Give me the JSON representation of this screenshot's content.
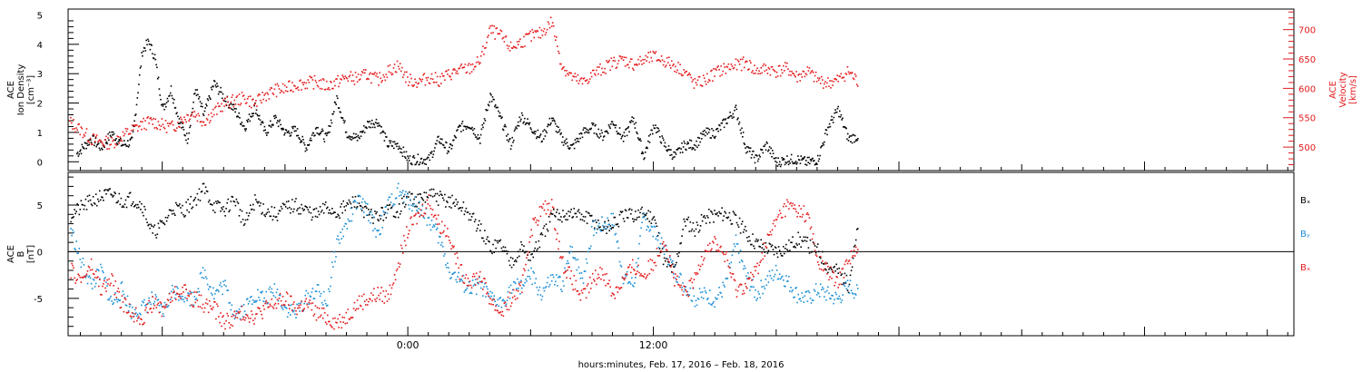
{
  "xaxis": {
    "caption": "hours:minutes, Feb. 17, 2016 – Feb. 18, 2016",
    "range_hours": [
      -16.6,
      43.3
    ],
    "tick_labels": [
      {
        "hour": 0,
        "label": "0:00"
      },
      {
        "hour": 12,
        "label": "12:00"
      }
    ]
  },
  "panel_top": {
    "left_axis_label": [
      "ACE",
      "Ion Density",
      "[cm⁻³]"
    ],
    "right_axis_label": [
      "ACE",
      "Velocity",
      "[km/s]"
    ],
    "left_color": "#000000",
    "right_color": "#e41a1c"
  },
  "panel_bottom": {
    "left_axis_label": [
      "ACE",
      "B",
      "[nT]"
    ],
    "legend": [
      {
        "label": "Bₓ",
        "color": "#000000"
      },
      {
        "label": "Bᵧ",
        "color": "#1b8fd6"
      },
      {
        "label": "Bₓ",
        "color": "#e41a1c"
      }
    ]
  },
  "chart_data": [
    {
      "type": "scatter",
      "title": "",
      "xlabel": "hours:minutes, Feb. 17, 2016 – Feb. 18, 2016",
      "ylabel": "ACE Ion Density [cm^-3]",
      "y2label": "ACE Velocity [km/s]",
      "ylim": [
        -0.3,
        5.2
      ],
      "y2lim": [
        460,
        735
      ],
      "yticks": [
        0,
        1,
        2,
        3,
        4,
        5
      ],
      "y2ticks": [
        500,
        550,
        600,
        650,
        700
      ],
      "grid": false,
      "series": [
        {
          "name": "Ion Density",
          "axis": "left",
          "color": "#000000",
          "x_hours": [
            -16.2,
            -15.5,
            -15.0,
            -14.5,
            -14.0,
            -13.5,
            -13.0,
            -12.7,
            -12.4,
            -12.0,
            -11.6,
            -11.2,
            -10.8,
            -10.4,
            -10.0,
            -9.5,
            -9.0,
            -8.5,
            -8.0,
            -7.5,
            -7.0,
            -6.5,
            -6.0,
            -5.5,
            -5.0,
            -4.5,
            -4.0,
            -3.5,
            -3.0,
            -2.5,
            -2.0,
            -1.5,
            -1.0,
            -0.5,
            0.0,
            0.5,
            1.0,
            1.5,
            2.0,
            2.5,
            3.0,
            3.5,
            4.0,
            4.5,
            5.0,
            5.5,
            6.0,
            6.5,
            7.0,
            7.5,
            8.0,
            8.5,
            9.0,
            9.5,
            10.0,
            10.5,
            11.0,
            11.5,
            12.0,
            12.5,
            13.0,
            13.5,
            14.0,
            14.5,
            15.0,
            15.5,
            16.0,
            16.5,
            17.0,
            17.5,
            18.0,
            18.5,
            19.0,
            19.5,
            20.0,
            20.5,
            21.0,
            21.5,
            22.0
          ],
          "values": [
            0.3,
            0.8,
            0.5,
            1.0,
            0.6,
            0.7,
            3.8,
            4.1,
            3.6,
            1.8,
            2.5,
            1.4,
            0.8,
            2.5,
            1.6,
            2.7,
            2.2,
            1.8,
            1.2,
            1.9,
            1.0,
            1.5,
            1.0,
            1.1,
            0.5,
            1.2,
            0.8,
            2.2,
            1.0,
            0.8,
            1.3,
            1.4,
            0.6,
            0.6,
            0.1,
            0.1,
            0.1,
            0.8,
            0.4,
            1.2,
            1.3,
            0.8,
            2.3,
            1.5,
            0.6,
            1.6,
            1.2,
            0.8,
            1.5,
            0.8,
            0.5,
            1.0,
            1.2,
            0.9,
            1.4,
            0.8,
            1.5,
            0.2,
            1.3,
            0.6,
            0.2,
            0.6,
            0.6,
            1.0,
            1.0,
            1.4,
            1.8,
            0.5,
            0.1,
            0.6,
            0.0,
            0.1,
            0.1,
            0.0,
            0.1,
            1.2,
            1.8,
            0.8,
            0.9
          ]
        },
        {
          "name": "Velocity",
          "axis": "right",
          "color": "#e41a1c",
          "x_hours": [
            -16.6,
            -16.0,
            -15.5,
            -15.0,
            -14.5,
            -14.0,
            -13.5,
            -13.0,
            -12.5,
            -12.0,
            -11.5,
            -11.0,
            -10.5,
            -10.0,
            -9.5,
            -9.0,
            -8.5,
            -8.0,
            -7.5,
            -7.0,
            -6.5,
            -6.0,
            -5.5,
            -5.0,
            -4.5,
            -4.0,
            -3.5,
            -3.0,
            -2.5,
            -2.0,
            -1.5,
            -1.0,
            -0.5,
            0.0,
            0.5,
            1.0,
            1.5,
            2.0,
            2.5,
            3.0,
            3.5,
            4.0,
            4.5,
            5.0,
            5.5,
            6.0,
            6.5,
            7.0,
            7.5,
            8.0,
            8.5,
            9.0,
            9.5,
            10.0,
            10.5,
            11.0,
            11.5,
            12.0,
            12.5,
            13.0,
            13.5,
            14.0,
            14.5,
            15.0,
            15.5,
            16.0,
            16.5,
            17.0,
            17.5,
            18.0,
            18.5,
            19.0,
            19.5,
            20.0,
            20.5,
            21.0,
            21.5,
            22.0
          ],
          "values": [
            545,
            530,
            515,
            510,
            508,
            520,
            530,
            540,
            545,
            538,
            535,
            550,
            560,
            545,
            560,
            575,
            580,
            585,
            575,
            590,
            598,
            600,
            608,
            610,
            612,
            605,
            612,
            620,
            618,
            625,
            615,
            630,
            640,
            615,
            612,
            620,
            615,
            625,
            632,
            635,
            648,
            700,
            690,
            670,
            680,
            690,
            695,
            715,
            640,
            620,
            610,
            625,
            635,
            645,
            650,
            642,
            648,
            655,
            648,
            640,
            630,
            608,
            615,
            628,
            635,
            640,
            645,
            630,
            635,
            630,
            635,
            620,
            630,
            615,
            610,
            615,
            630,
            610
          ]
        }
      ]
    },
    {
      "type": "scatter",
      "title": "",
      "xlabel": "hours:minutes, Feb. 17, 2016 – Feb. 18, 2016",
      "ylabel": "ACE B [nT]",
      "ylim": [
        -9,
        8.5
      ],
      "yticks": [
        -5,
        0,
        5
      ],
      "zero_line": true,
      "grid": false,
      "series": [
        {
          "name": "Bₓ",
          "color": "#000000",
          "x_hours": [
            -16.5,
            -15.5,
            -15.0,
            -14.5,
            -14.0,
            -13.5,
            -13.0,
            -12.5,
            -12.0,
            -11.5,
            -11.0,
            -10.5,
            -10.0,
            -9.5,
            -9.0,
            -8.5,
            -8.0,
            -7.5,
            -7.0,
            -6.5,
            -6.0,
            -5.5,
            -5.0,
            -4.5,
            -4.0,
            -3.5,
            -3.0,
            -2.5,
            -2.0,
            -1.5,
            -1.0,
            -0.5,
            0.0,
            0.5,
            1.0,
            1.5,
            2.0,
            2.5,
            3.0,
            3.5,
            4.0,
            4.5,
            5.0,
            5.5,
            6.0,
            6.5,
            7.0,
            7.5,
            8.0,
            8.5,
            9.0,
            9.5,
            10.0,
            10.5,
            11.0,
            11.5,
            12.0,
            12.5,
            13.0,
            13.5,
            14.0,
            14.5,
            15.0,
            15.5,
            16.0,
            16.5,
            17.0,
            17.5,
            18.0,
            18.5,
            19.0,
            19.5,
            20.0,
            20.5,
            21.0,
            21.5,
            22.0
          ],
          "values": [
            4.0,
            5.5,
            6.0,
            6.2,
            5.5,
            5.8,
            5.0,
            2.0,
            3.0,
            4.8,
            4.5,
            5.5,
            6.8,
            5.0,
            4.5,
            5.8,
            3.0,
            5.5,
            4.5,
            4.0,
            4.8,
            5.0,
            4.5,
            4.0,
            4.8,
            4.2,
            5.0,
            5.5,
            4.0,
            3.8,
            4.5,
            4.5,
            6.0,
            5.5,
            6.2,
            5.8,
            5.5,
            5.0,
            4.0,
            2.5,
            0.5,
            1.0,
            -1.0,
            0.5,
            -0.5,
            1.5,
            3.8,
            4.0,
            4.2,
            3.8,
            3.5,
            2.5,
            3.0,
            3.8,
            4.0,
            4.2,
            3.8,
            -1.0,
            -2.0,
            3.5,
            2.5,
            3.8,
            4.0,
            4.2,
            3.5,
            2.0,
            1.0,
            0.5,
            0.2,
            0.5,
            1.5,
            0.8,
            0.2,
            -1.5,
            -2.0,
            -3.5,
            3.0
          ]
        },
        {
          "name": "Bᵧ",
          "color": "#1b8fd6",
          "x_hours": [
            -16.5,
            -16.0,
            -15.5,
            -15.0,
            -14.5,
            -14.0,
            -13.5,
            -13.0,
            -12.5,
            -12.0,
            -11.5,
            -11.0,
            -10.5,
            -10.0,
            -9.5,
            -9.0,
            -8.5,
            -8.0,
            -7.5,
            -7.0,
            -6.5,
            -6.0,
            -5.5,
            -5.0,
            -4.5,
            -4.0,
            -3.5,
            -3.0,
            -2.5,
            -2.0,
            -1.5,
            -1.0,
            -0.5,
            0.0,
            0.5,
            1.0,
            1.5,
            2.0,
            2.5,
            3.0,
            3.5,
            4.0,
            4.5,
            5.0,
            5.5,
            6.0,
            6.5,
            7.0,
            7.5,
            8.0,
            8.5,
            9.0,
            9.5,
            10.0,
            10.5,
            11.0,
            11.5,
            12.0,
            12.5,
            13.0,
            13.5,
            14.0,
            14.5,
            15.0,
            15.5,
            16.0,
            16.5,
            17.0,
            17.5,
            18.0,
            18.5,
            19.0,
            19.5,
            20.0,
            20.5,
            21.0,
            21.5,
            22.0
          ],
          "values": [
            2.5,
            -1.0,
            -3.5,
            -2.0,
            -5.5,
            -4.0,
            -6.5,
            -6.0,
            -5.0,
            -6.5,
            -4.0,
            -4.5,
            -5.0,
            -2.0,
            -4.5,
            -3.5,
            -6.5,
            -6.0,
            -4.5,
            -5.0,
            -4.0,
            -6.0,
            -6.5,
            -5.0,
            -4.0,
            -5.5,
            1.0,
            3.0,
            5.5,
            4.5,
            2.0,
            5.0,
            6.5,
            5.5,
            5.0,
            3.5,
            1.5,
            -2.0,
            -3.0,
            -4.0,
            -3.5,
            -5.0,
            -5.5,
            -4.0,
            -3.5,
            -2.5,
            -4.5,
            -3.0,
            -3.5,
            0.5,
            -3.0,
            2.5,
            3.0,
            3.5,
            -2.5,
            -3.5,
            3.8,
            2.0,
            0.5,
            -2.0,
            -3.5,
            -5.0,
            -4.5,
            -5.0,
            -3.5,
            1.0,
            -2.5,
            -4.5,
            -3.0,
            -2.0,
            -3.0,
            -4.5,
            -5.0,
            -4.0,
            -4.5,
            -5.0,
            -3.5,
            -4.5
          ]
        },
        {
          "name": "Bₓ",
          "color": "#e41a1c",
          "x_hours": [
            -16.5,
            -16.0,
            -15.5,
            -15.0,
            -14.5,
            -14.0,
            -13.5,
            -13.0,
            -12.5,
            -12.0,
            -11.5,
            -11.0,
            -10.5,
            -10.0,
            -9.5,
            -9.0,
            -8.5,
            -8.0,
            -7.5,
            -7.0,
            -6.5,
            -6.0,
            -5.5,
            -5.0,
            -4.5,
            -4.0,
            -3.5,
            -3.0,
            -2.5,
            -2.0,
            -1.5,
            -1.0,
            -0.5,
            0.0,
            0.5,
            1.0,
            1.5,
            2.0,
            2.5,
            3.0,
            3.5,
            4.0,
            4.5,
            5.0,
            5.5,
            6.0,
            6.5,
            7.0,
            7.5,
            8.0,
            8.5,
            9.0,
            9.5,
            10.0,
            10.5,
            11.0,
            11.5,
            12.0,
            12.5,
            13.0,
            13.5,
            14.0,
            14.5,
            15.0,
            15.5,
            16.0,
            16.5,
            17.0,
            17.5,
            18.0,
            18.5,
            19.0,
            19.5,
            20.0,
            20.5,
            21.0,
            21.5,
            22.0
          ],
          "values": [
            -2.0,
            -3.0,
            -1.5,
            -4.0,
            -3.0,
            -5.5,
            -6.5,
            -7.0,
            -5.5,
            -6.0,
            -4.5,
            -4.0,
            -5.0,
            -5.5,
            -6.0,
            -7.5,
            -7.0,
            -6.5,
            -6.8,
            -6.0,
            -5.5,
            -5.0,
            -6.0,
            -5.5,
            -6.5,
            -7.0,
            -7.5,
            -6.8,
            -5.5,
            -5.0,
            -4.5,
            -4.8,
            -1.0,
            2.5,
            4.0,
            5.5,
            3.0,
            2.0,
            -2.0,
            -3.0,
            -2.5,
            -5.0,
            -6.5,
            -5.0,
            -4.0,
            2.5,
            4.5,
            5.0,
            -1.0,
            -3.0,
            -5.0,
            -3.0,
            -2.0,
            -4.5,
            -3.0,
            -1.5,
            -2.5,
            -1.0,
            1.5,
            -3.0,
            -4.5,
            -3.0,
            0.5,
            1.0,
            -0.5,
            -4.0,
            -3.5,
            -2.0,
            1.0,
            3.5,
            5.0,
            4.5,
            4.0,
            -1.0,
            -2.0,
            -3.5,
            -0.5,
            0.0
          ]
        }
      ]
    }
  ]
}
